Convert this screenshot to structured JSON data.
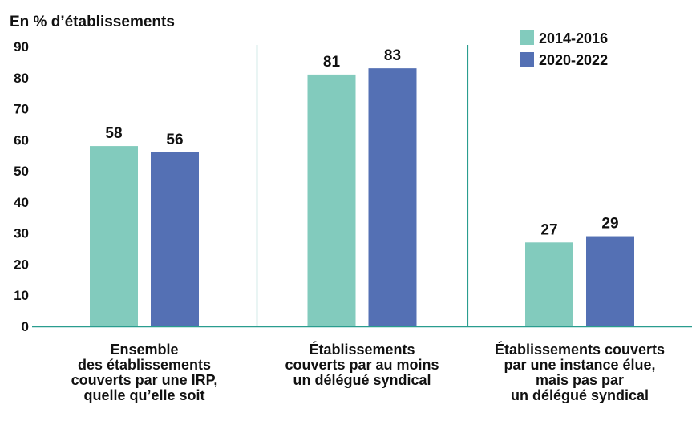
{
  "chart_data": {
    "type": "bar",
    "ylabel": "En % d’établissements",
    "ylim": [
      0,
      90
    ],
    "yticks": [
      0,
      10,
      20,
      30,
      40,
      50,
      60,
      70,
      80,
      90
    ],
    "categories": [
      [
        "Ensemble",
        "des établissements",
        "couverts par une IRP,",
        "quelle qu’elle soit"
      ],
      [
        "Établissements",
        "couverts par au moins",
        "un délégué syndical"
      ],
      [
        "Établissements couverts",
        "par une instance élue,",
        "mais pas par",
        "un délégué syndical"
      ]
    ],
    "series": [
      {
        "name": "2014-2016",
        "color": "#82cbbd",
        "values": [
          58,
          81,
          27
        ]
      },
      {
        "name": "2020-2022",
        "color": "#5470b4",
        "values": [
          56,
          83,
          29
        ]
      }
    ],
    "legend_position": "top-right",
    "axis_color": "#2a9d8f",
    "grid": false
  }
}
